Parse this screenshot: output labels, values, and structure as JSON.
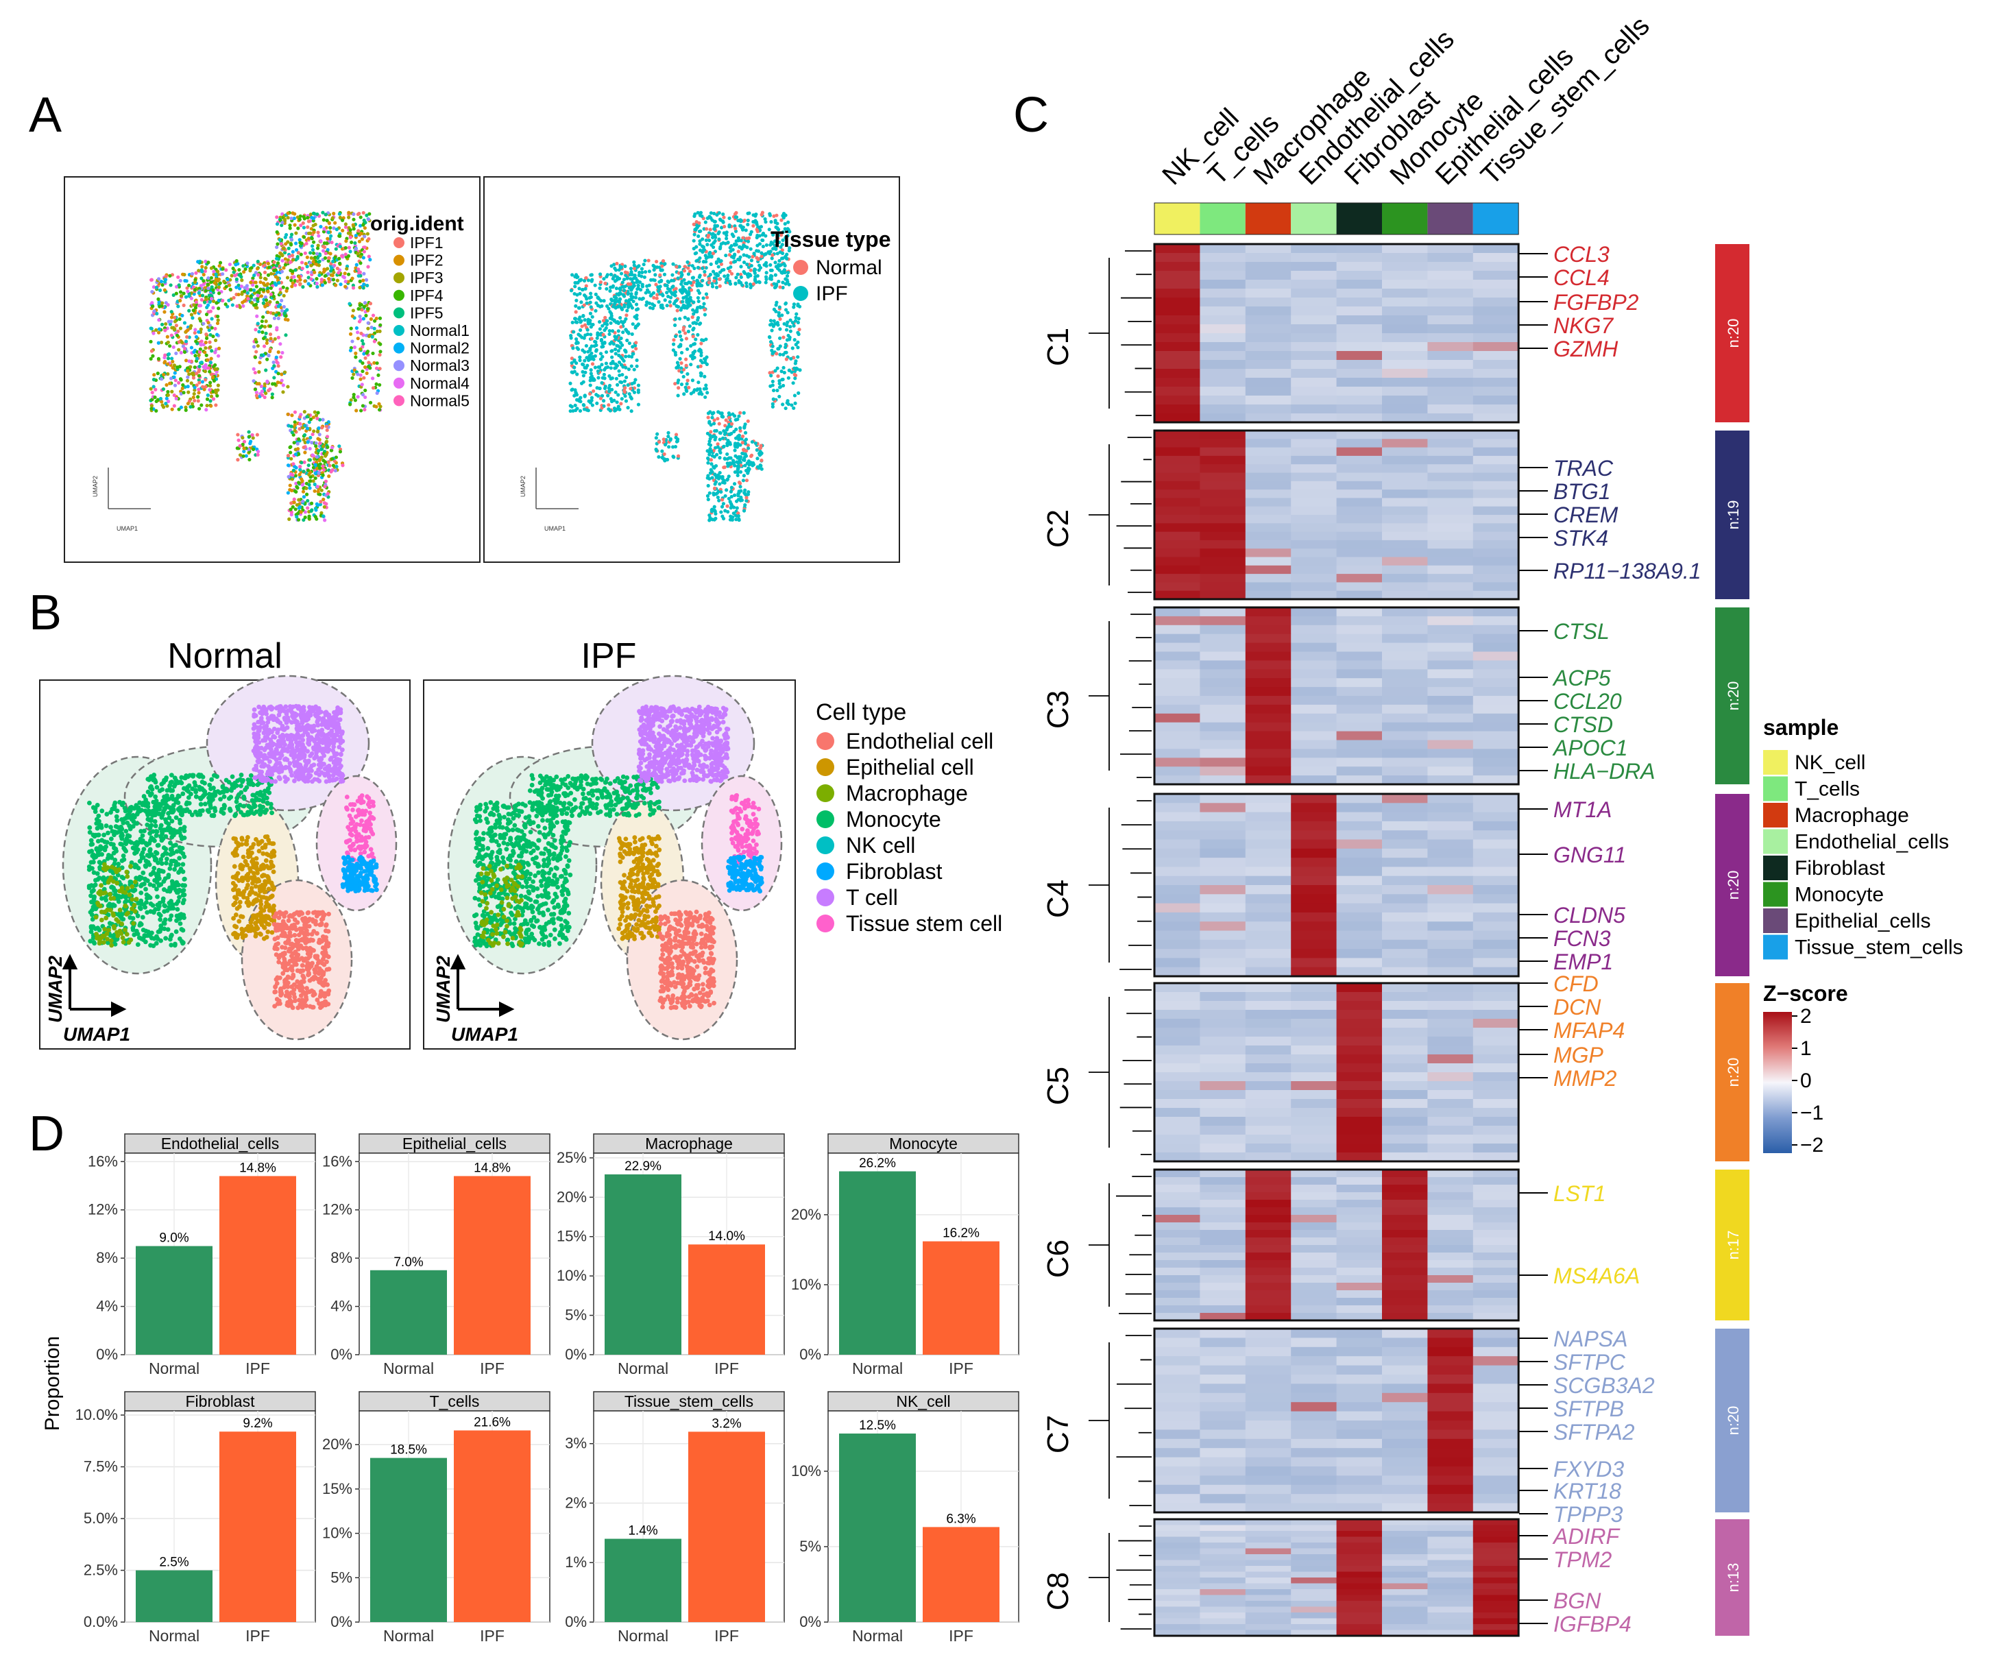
{
  "panel_labels": [
    "A",
    "B",
    "C",
    "D"
  ],
  "colors": {
    "normal_bar": "#2e9660",
    "ipf_bar": "#fe6331",
    "heat_low": "#2a5ea8",
    "heat_mid": "#f3f5fb",
    "heat_high": "#a80f16"
  },
  "panelA": {
    "left_legend_title": "orig.ident",
    "left_legend": [
      {
        "label": "IPF1",
        "color": "#f8766d"
      },
      {
        "label": "IPF2",
        "color": "#d89000"
      },
      {
        "label": "IPF3",
        "color": "#a3a500"
      },
      {
        "label": "IPF4",
        "color": "#39b600"
      },
      {
        "label": "IPF5",
        "color": "#00bf7d"
      },
      {
        "label": "Normal1",
        "color": "#00bfc4"
      },
      {
        "label": "Normal2",
        "color": "#00b0f6"
      },
      {
        "label": "Normal3",
        "color": "#9590ff"
      },
      {
        "label": "Normal4",
        "color": "#e76bf3"
      },
      {
        "label": "Normal5",
        "color": "#ff62bc"
      }
    ],
    "right_legend_title": "Tissue type",
    "right_legend": [
      {
        "label": "Normal",
        "color": "#f8766d"
      },
      {
        "label": "IPF",
        "color": "#00bfc4"
      }
    ],
    "axis_x": "UMAP1",
    "axis_y": "UMAP2"
  },
  "panelB": {
    "titles": [
      "Normal",
      "IPF"
    ],
    "legend_title": "Cell type",
    "legend": [
      {
        "label": "Endothelial cell",
        "color": "#f8766d"
      },
      {
        "label": "Epithelial cell",
        "color": "#cd9600"
      },
      {
        "label": "Macrophage",
        "color": "#7cae00"
      },
      {
        "label": "Monocyte",
        "color": "#00be67"
      },
      {
        "label": "NK cell",
        "color": "#00bfc4"
      },
      {
        "label": "Fibroblast",
        "color": "#00a9ff"
      },
      {
        "label": "T cell",
        "color": "#c77cff"
      },
      {
        "label": "Tissue stem cell",
        "color": "#ff61cc"
      }
    ],
    "axis_x": "UMAP1",
    "axis_y": "UMAP2"
  },
  "panelC": {
    "columns": [
      {
        "label": "NK_cell",
        "color": "#f0f060"
      },
      {
        "label": "T_cells",
        "color": "#7ee87e"
      },
      {
        "label": "Macrophage",
        "color": "#d23a10"
      },
      {
        "label": "Endothelial_cells",
        "color": "#a8f0a0"
      },
      {
        "label": "Fibroblast",
        "color": "#0e2a20"
      },
      {
        "label": "Monocyte",
        "color": "#2c9420"
      },
      {
        "label": "Epithelial_cells",
        "color": "#6a4a78"
      },
      {
        "label": "Tissue_stem_cells",
        "color": "#18a0e8"
      }
    ],
    "clusters": [
      {
        "label": "C1",
        "n": "n:20",
        "color": "#d42a30",
        "high": [
          0
        ],
        "genes": [
          "CCL3",
          "CCL4",
          "FGFBP2",
          "NKG7",
          "GZMH"
        ]
      },
      {
        "label": "C2",
        "n": "n:19",
        "color": "#2c3070",
        "high": [
          0,
          1
        ],
        "genes": [
          "TRAC",
          "BTG1",
          "CREM",
          "STK4",
          "RP11−138A9.1"
        ]
      },
      {
        "label": "C3",
        "n": "n:20",
        "color": "#2a8a40",
        "high": [
          2
        ],
        "genes": [
          "CTSL",
          "ACP5",
          "CCL20",
          "CTSD",
          "APOC1",
          "HLA−DRA"
        ]
      },
      {
        "label": "C4",
        "n": "n:20",
        "color": "#8a2a8a",
        "high": [
          3
        ],
        "genes": [
          "MT1A",
          "GNG11",
          "CLDN5",
          "FCN3",
          "EMP1"
        ]
      },
      {
        "label": "C5",
        "n": "n:20",
        "color": "#f08028",
        "high": [
          4
        ],
        "genes": [
          "CFD",
          "DCN",
          "MFAP4",
          "MGP",
          "MMP2"
        ]
      },
      {
        "label": "C6",
        "n": "n:17",
        "color": "#f0d820",
        "high": [
          2,
          5
        ],
        "genes": [
          "LST1",
          "MS4A6A"
        ]
      },
      {
        "label": "C7",
        "n": "n:20",
        "color": "#8aa0d0",
        "high": [
          6
        ],
        "genes": [
          "NAPSA",
          "SFTPC",
          "SCGB3A2",
          "SFTPB",
          "SFTPA2",
          "FXYD3",
          "KRT18",
          "TPPP3"
        ]
      },
      {
        "label": "C8",
        "n": "n:13",
        "color": "#c065a8",
        "high": [
          4,
          7
        ],
        "genes": [
          "ADIRF",
          "TPM2",
          "BGN",
          "IGFBP4"
        ]
      }
    ],
    "sample_legend_title": "sample",
    "zscore_title": "Z−score",
    "zscore_ticks": [
      "2",
      "1",
      "0",
      "−1",
      "−2"
    ]
  },
  "panelD": {
    "ylabel": "Proportion",
    "facets": [
      {
        "title": "Endothelial_cells",
        "ticks": [
          "0%",
          "4%",
          "8%",
          "12%",
          "16%"
        ]
      },
      {
        "title": "Epithelial_cells",
        "ticks": [
          "0%",
          "4%",
          "8%",
          "12%",
          "16%"
        ]
      },
      {
        "title": "Macrophage",
        "ticks": [
          "0%",
          "5%",
          "10%",
          "15%",
          "20%",
          "25%"
        ]
      },
      {
        "title": "Monocyte",
        "ticks": [
          "0%",
          "10%",
          "20%"
        ]
      },
      {
        "title": "Fibroblast",
        "ticks": [
          "0.0%",
          "2.5%",
          "5.0%",
          "7.5%",
          "10.0%"
        ]
      },
      {
        "title": "T_cells",
        "ticks": [
          "0%",
          "5%",
          "10%",
          "15%",
          "20%"
        ]
      },
      {
        "title": "Tissue_stem_cells",
        "ticks": [
          "0%",
          "1%",
          "2%",
          "3%"
        ]
      },
      {
        "title": "NK_cell",
        "ticks": [
          "0%",
          "5%",
          "10%"
        ]
      }
    ]
  },
  "chart_data": {
    "type": "bar",
    "categories": [
      "Normal",
      "IPF"
    ],
    "ylabel": "Proportion",
    "facets": [
      {
        "title": "Endothelial_cells",
        "values": [
          9.0,
          14.8
        ],
        "labels": [
          "9.0%",
          "14.8%"
        ],
        "ylim": [
          0,
          16.7
        ]
      },
      {
        "title": "Epithelial_cells",
        "values": [
          7.0,
          14.8
        ],
        "labels": [
          "7.0%",
          "14.8%"
        ],
        "ylim": [
          0,
          16.7
        ]
      },
      {
        "title": "Macrophage",
        "values": [
          22.9,
          14.0
        ],
        "labels": [
          "22.9%",
          "14.0%"
        ],
        "ylim": [
          0,
          25.6
        ]
      },
      {
        "title": "Monocyte",
        "values": [
          26.2,
          16.2
        ],
        "labels": [
          "26.2%",
          "16.2%"
        ],
        "ylim": [
          0,
          28.8
        ]
      },
      {
        "title": "Fibroblast",
        "values": [
          2.5,
          9.2
        ],
        "labels": [
          "2.5%",
          "9.2%"
        ],
        "ylim": [
          0,
          10.2
        ]
      },
      {
        "title": "T_cells",
        "values": [
          18.5,
          21.6
        ],
        "labels": [
          "18.5%",
          "21.6%"
        ],
        "ylim": [
          0,
          23.8
        ]
      },
      {
        "title": "Tissue_stem_cells",
        "values": [
          1.4,
          3.2
        ],
        "labels": [
          "1.4%",
          "3.2%"
        ],
        "ylim": [
          0,
          3.55
        ]
      },
      {
        "title": "NK_cell",
        "values": [
          12.5,
          6.3
        ],
        "labels": [
          "12.5%",
          "6.3%"
        ],
        "ylim": [
          0,
          14.0
        ]
      }
    ]
  }
}
